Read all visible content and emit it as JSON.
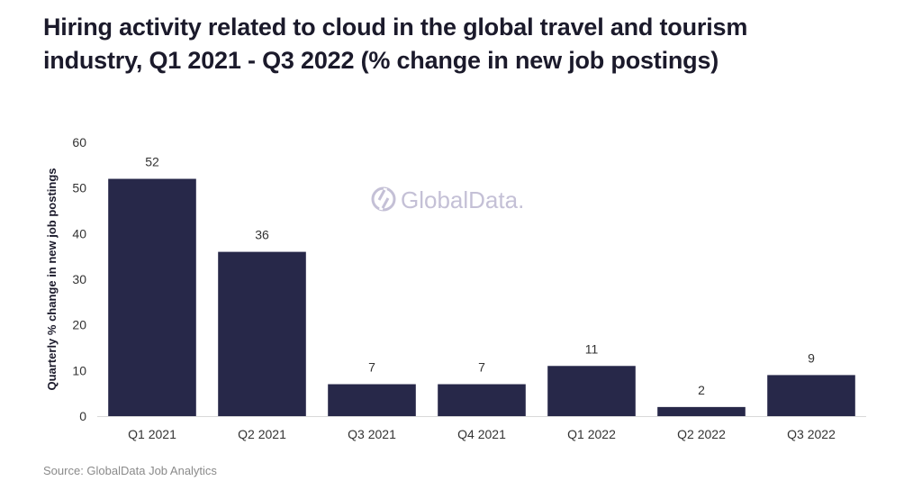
{
  "header": {
    "title": "Hiring activity related to cloud in the global travel and tourism industry, Q1 2021 - Q3 2022 (% change in new job postings)"
  },
  "watermark": {
    "text": "GlobalData.",
    "icon": "globaldata-logo-icon"
  },
  "footer": {
    "source": "Source: GlobalData Job Analytics"
  },
  "colors": {
    "bar": "#272849",
    "axis": "#d9d9d9",
    "watermark": "#c4c0d6"
  },
  "chart_data": {
    "type": "bar",
    "title": "Hiring activity related to cloud in the global travel and tourism industry, Q1 2021 - Q3 2022 (% change in new job postings)",
    "xlabel": "",
    "ylabel": "Quarterly % change in new job postings",
    "categories": [
      "Q1 2021",
      "Q2 2021",
      "Q3 2021",
      "Q4 2021",
      "Q1 2022",
      "Q2 2022",
      "Q3 2022"
    ],
    "values": [
      52,
      36,
      7,
      7,
      11,
      2,
      9
    ],
    "data_labels": [
      "52",
      "36",
      "7",
      "7",
      "11",
      "2",
      "9"
    ],
    "ylim": [
      0,
      60
    ],
    "yticks": [
      0,
      10,
      20,
      30,
      40,
      50,
      60
    ],
    "ytick_labels": [
      "0",
      "10",
      "20",
      "30",
      "40",
      "50",
      "60"
    ],
    "grid": false,
    "legend": "none"
  }
}
